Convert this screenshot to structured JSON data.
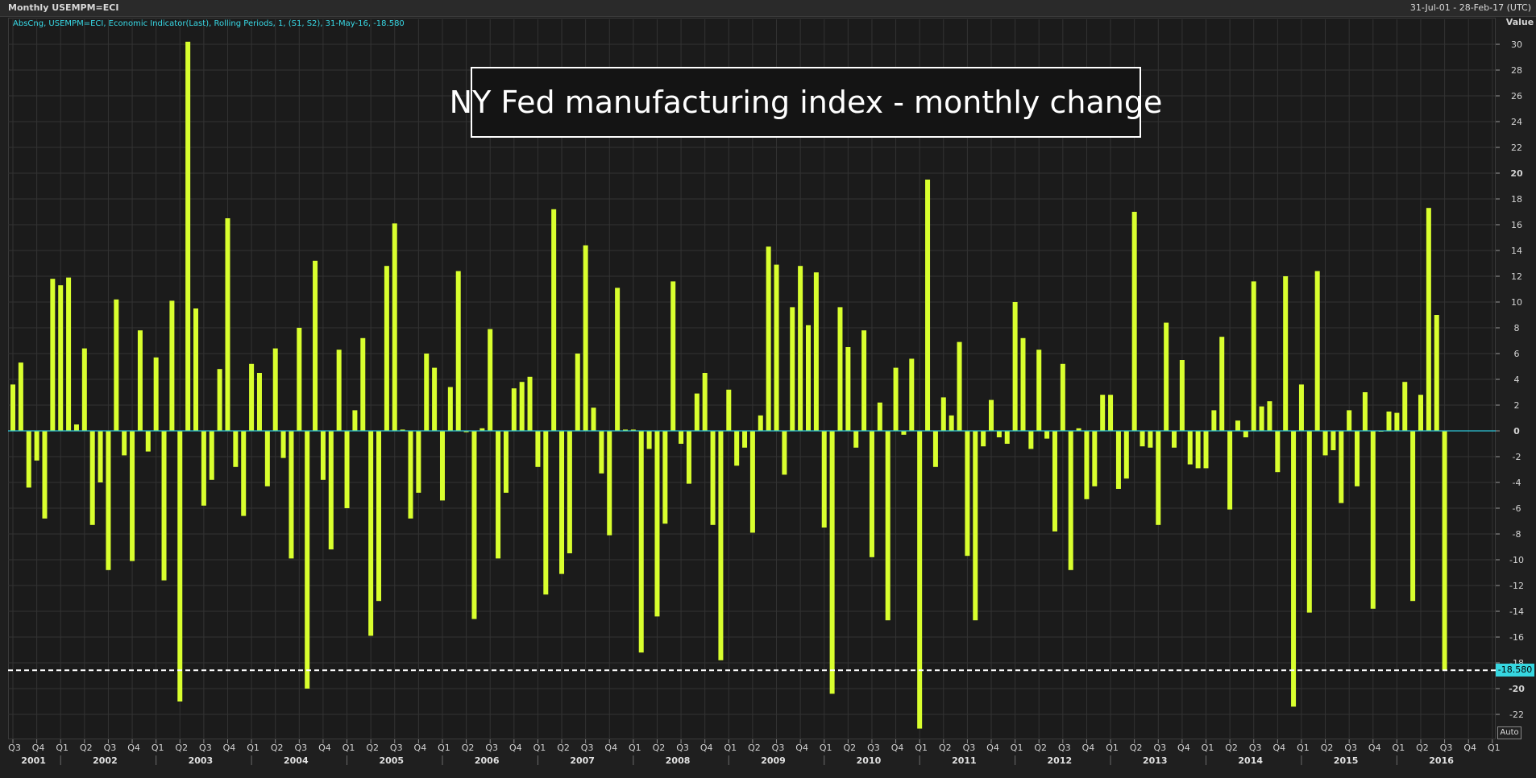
{
  "window": {
    "title": "Monthly USEMPM=ECI",
    "date_range": "31-Jul-01 - 28-Feb-17 (UTC)",
    "series_label": "AbsCng, USEMPM=ECI, Economic Indicator(Last), Rolling Periods, 1, (S1, S2), 31-May-16, -18.580",
    "overlay_title": "NY Fed manufacturing index - monthly change",
    "axis_title": "Value",
    "auto_button": "Auto",
    "current_value_label": "-18.580"
  },
  "colors": {
    "background": "#1b1b1b",
    "bar": "#d9ff2e",
    "zero_line": "#2ec4d6",
    "grid": "#333333",
    "reference_line": "#ffffff",
    "badge": "#36d6e0"
  },
  "chart_data": {
    "type": "bar",
    "title": "NY Fed manufacturing index - monthly change",
    "xlabel": "",
    "ylabel": "Value",
    "ylim": [
      -24,
      31
    ],
    "yticks": [
      30,
      28,
      26,
      24,
      22,
      20,
      18,
      16,
      14,
      12,
      10,
      8,
      6,
      4,
      2,
      0,
      -2,
      -4,
      -6,
      -8,
      -10,
      -12,
      -14,
      -16,
      -18,
      -20,
      -22
    ],
    "bold_yticks": [
      20,
      0,
      -20
    ],
    "reference_line": -18.58,
    "x_start": "2001-07",
    "x_end": "2017-02",
    "quarter_ticks": [
      "Q3",
      "Q4",
      "Q1",
      "Q2",
      "Q3",
      "Q4",
      "Q1",
      "Q2",
      "Q3",
      "Q4",
      "Q1",
      "Q2",
      "Q3",
      "Q4",
      "Q1",
      "Q2",
      "Q3",
      "Q4",
      "Q1",
      "Q2",
      "Q3",
      "Q4",
      "Q1",
      "Q2",
      "Q3",
      "Q4",
      "Q1",
      "Q2",
      "Q3",
      "Q4",
      "Q1",
      "Q2",
      "Q3",
      "Q4",
      "Q1",
      "Q2",
      "Q3",
      "Q4",
      "Q1",
      "Q2",
      "Q3",
      "Q4",
      "Q1",
      "Q2",
      "Q3",
      "Q4",
      "Q1",
      "Q2",
      "Q3",
      "Q4",
      "Q1",
      "Q2",
      "Q3",
      "Q4",
      "Q1",
      "Q2",
      "Q3",
      "Q4",
      "Q1",
      "Q2",
      "Q3",
      "Q4",
      "Q1"
    ],
    "years": [
      "2001",
      "2002",
      "2003",
      "2004",
      "2005",
      "2006",
      "2007",
      "2008",
      "2009",
      "2010",
      "2011",
      "2012",
      "2013",
      "2014",
      "2015",
      "2016"
    ],
    "series": [
      {
        "values": [
          3.6,
          5.3,
          -4.4,
          -2.3,
          -6.8,
          11.8,
          11.3,
          11.9,
          0.5,
          6.4,
          -7.3,
          -4.0,
          -10.8,
          10.2,
          -1.9,
          -10.1,
          7.8,
          -1.6,
          5.7,
          -11.6,
          10.1,
          -21.0,
          30.2,
          9.5,
          -5.8,
          -3.8,
          4.8,
          16.5,
          -2.8,
          -6.6,
          5.2,
          4.5,
          -4.3,
          6.4,
          -2.1,
          -9.9,
          8.0,
          -20.0,
          13.2,
          -3.8,
          -9.2,
          6.3,
          -6.0,
          1.6,
          7.2,
          -15.9,
          -13.2,
          12.8,
          16.1,
          0.1,
          -6.8,
          -4.8,
          6.0,
          4.9,
          -5.4,
          3.4,
          12.4,
          -0.1,
          -14.6,
          0.2,
          7.9,
          -9.9,
          -4.8,
          3.3,
          3.8,
          4.2,
          -2.8,
          -12.7,
          17.2,
          -11.1,
          -9.5,
          6.0,
          14.4,
          1.8,
          -3.3,
          -8.1,
          11.1,
          0.1,
          0.1,
          -17.2,
          -1.4,
          -14.4,
          -7.2,
          11.6,
          -1.0,
          -4.1,
          2.9,
          4.5,
          -7.3,
          -17.8,
          3.2,
          -2.7,
          -1.3,
          -7.9,
          1.2,
          14.3,
          12.9,
          -3.4,
          9.6,
          12.8,
          8.2,
          12.3,
          -7.5,
          -20.4,
          9.6,
          6.5,
          -1.3,
          7.8,
          -9.8,
          2.2,
          -14.7,
          4.9,
          -0.3,
          5.6,
          -23.1,
          19.5,
          -2.8,
          2.6,
          1.2,
          6.9,
          -9.7,
          -14.7,
          -1.2,
          2.4,
          -0.5,
          -1.0,
          10.0,
          7.2,
          -1.4,
          6.3,
          -0.6,
          -7.8,
          5.2,
          -10.8,
          0.2,
          -5.3,
          -4.3,
          2.8,
          2.8,
          -4.5,
          -3.7,
          17.0,
          -1.2,
          -1.3,
          -7.3,
          8.4,
          -1.3,
          5.5,
          -2.6,
          -2.9,
          -2.9,
          1.6,
          7.3,
          -6.1,
          0.8,
          -0.5,
          11.6,
          1.9,
          2.3,
          -3.2,
          12.0,
          -21.4,
          3.6,
          -14.1,
          12.4,
          -1.9,
          -1.5,
          -5.6,
          1.6,
          -4.3,
          3.0,
          -13.8,
          0.0,
          1.5,
          1.4,
          3.8,
          -13.2,
          2.8,
          17.3,
          9.0,
          -18.58
        ]
      }
    ]
  }
}
